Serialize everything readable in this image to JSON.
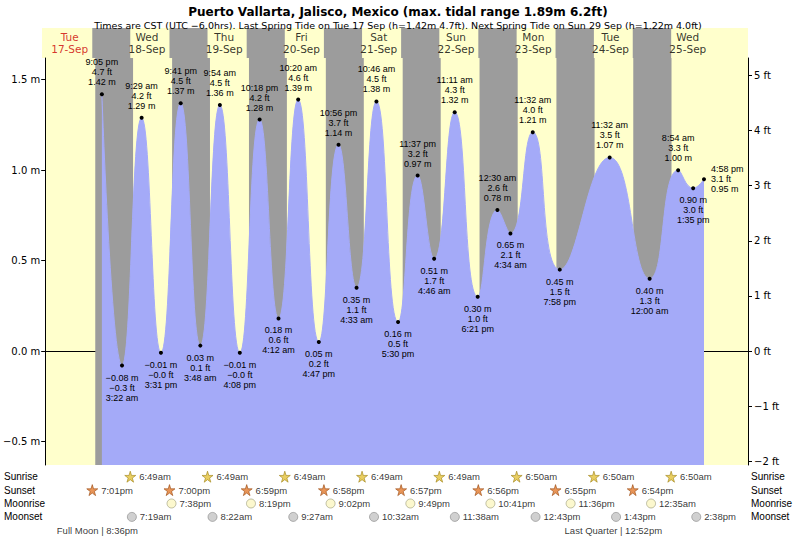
{
  "chart_data": {
    "type": "line",
    "title": "Puerto Vallarta, Jalisco, Mexico (max. tidal range 1.89m 6.2ft)",
    "subtitle": "Times are CST (UTC −6.0hrs). Last Spring Tide on Tue 17 Sep (h=1.42m 4.7ft). Next Spring Tide on Sun 29 Sep (h=1.22m 4.0ft)",
    "color": "#a4aaf8",
    "grid": false,
    "tick_labels": "y",
    "data_labels": true,
    "xlim": [
      3.4,
      222.7
    ],
    "ylim": [
      -0.63,
      1.62
    ],
    "yticks": [
      {
        "value": -0.5,
        "label": "−0.5 m"
      },
      {
        "value": 0,
        "label": "0.0 m"
      },
      {
        "value": 0.5,
        "label": "0.5 m"
      },
      {
        "value": 1,
        "label": "1.0 m"
      },
      {
        "value": 1.5,
        "label": "1.5 m"
      }
    ],
    "y2lim": [
      -2.067,
      5.315
    ],
    "y2ticks": [
      {
        "value": -2,
        "label": "−2 ft"
      },
      {
        "value": -1,
        "label": "−1 ft"
      },
      {
        "value": 0,
        "label": "0 ft"
      },
      {
        "value": 1,
        "label": "1 ft"
      },
      {
        "value": 2,
        "label": "2 ft"
      },
      {
        "value": 3,
        "label": "3 ft"
      },
      {
        "value": 4,
        "label": "4 ft"
      },
      {
        "value": 5,
        "label": "5 ft"
      }
    ],
    "x": [
      21.083,
      27.367,
      33.483,
      39.517,
      45.683,
      51.8,
      57.9,
      64.133,
      70.3,
      76.2,
      82.333,
      88.783,
      94.933,
      100.55,
      106.767,
      113.5,
      119.617,
      124.767,
      131.183,
      138.35,
      144.5,
      148.567,
      155.533,
      163.967,
      179.533,
      192,
      200.9,
      205.583,
      208.967
    ],
    "values": [
      1.42,
      -0.08,
      1.29,
      -0.01,
      1.37,
      0.03,
      1.36,
      -0.01,
      1.28,
      0.18,
      1.39,
      0.05,
      1.14,
      0.35,
      1.38,
      0.16,
      0.97,
      0.51,
      1.32,
      0.3,
      0.78,
      0.65,
      1.21,
      0.45,
      1.07,
      0.4,
      1.0,
      0.9,
      0.95
    ],
    "value_labels": [
      "1.42 m",
      "−0.08 m",
      "1.29 m",
      "−0.01 m",
      "1.37 m",
      "0.03 m",
      "1.36 m",
      "−0.01 m",
      "1.28 m",
      "0.18 m",
      "1.39 m",
      "0.05 m",
      "1.14 m",
      "0.35 m",
      "1.38 m",
      "0.16 m",
      "0.97 m",
      "0.51 m",
      "1.32 m",
      "0.30 m",
      "0.78 m",
      "0.65 m",
      "1.21 m",
      "0.45 m",
      "1.07 m",
      "0.40 m",
      "1.00 m",
      "0.90 m",
      "0.95 m"
    ],
    "ft_labels": [
      "4.7 ft",
      "−0.3 ft",
      "4.2 ft",
      "−0.0 ft",
      "4.5 ft",
      "0.1 ft",
      "4.5 ft",
      "−0.0 ft",
      "4.2 ft",
      "0.6 ft",
      "4.6 ft",
      "0.2 ft",
      "3.7 ft",
      "1.1 ft",
      "4.5 ft",
      "0.5 ft",
      "3.2 ft",
      "1.7 ft",
      "4.3 ft",
      "1.0 ft",
      "2.6 ft",
      "2.1 ft",
      "4.0 ft",
      "1.5 ft",
      "3.5 ft",
      "1.3 ft",
      "3.3 ft",
      "3.0 ft",
      "3.1 ft"
    ],
    "time_labels": [
      "9:05 pm",
      "3:22 am",
      "9:29 am",
      "3:31 pm",
      "9:41 pm",
      "3:48 am",
      "9:54 am",
      "4:08 pm",
      "10:18 pm",
      "4:12 am",
      "10:20 am",
      "4:47 pm",
      "10:56 pm",
      "4:33 am",
      "10:46 am",
      "5:30 pm",
      "11:37 pm",
      "4:46 am",
      "11:11 am",
      "6:21 pm",
      "12:30 am",
      "4:34 am",
      "11:32 am",
      "7:58 pm",
      "11:32 am",
      "12:00 am",
      "8:54 am",
      "1:35 pm",
      "4:58 pm"
    ],
    "days": [
      {
        "x": 12,
        "day": "Tue",
        "date": "17-Sep",
        "color": "#cc0000"
      },
      {
        "x": 36,
        "day": "Wed",
        "date": "18-Sep",
        "color": "#000000"
      },
      {
        "x": 60,
        "day": "Thu",
        "date": "19-Sep",
        "color": "#000000"
      },
      {
        "x": 84,
        "day": "Fri",
        "date": "20-Sep",
        "color": "#000000"
      },
      {
        "x": 108,
        "day": "Sat",
        "date": "21-Sep",
        "color": "#000000"
      },
      {
        "x": 132,
        "day": "Sun",
        "date": "22-Sep",
        "color": "#000000"
      },
      {
        "x": 156,
        "day": "Mon",
        "date": "23-Sep",
        "color": "#000000"
      },
      {
        "x": 180,
        "day": "Tue",
        "date": "24-Sep",
        "color": "#000000"
      },
      {
        "x": 204,
        "day": "Wed",
        "date": "25-Sep",
        "color": "#000000"
      }
    ],
    "almanac": [
      {
        "name": "Sunrise",
        "events": [
          {
            "x": 30.817,
            "label": "6:49am"
          },
          {
            "x": 54.817,
            "label": "6:49am"
          },
          {
            "x": 78.817,
            "label": "6:49am"
          },
          {
            "x": 102.817,
            "label": "6:49am"
          },
          {
            "x": 126.817,
            "label": "6:49am"
          },
          {
            "x": 150.833,
            "label": "6:50am"
          },
          {
            "x": 174.833,
            "label": "6:50am"
          },
          {
            "x": 198.833,
            "label": "6:50am"
          }
        ]
      },
      {
        "name": "Sunset",
        "events": [
          {
            "x": 19.017,
            "label": "7:01pm"
          },
          {
            "x": 43.0,
            "label": "7:00pm"
          },
          {
            "x": 66.983,
            "label": "6:59pm"
          },
          {
            "x": 90.967,
            "label": "6:58pm"
          },
          {
            "x": 114.95,
            "label": "6:57pm"
          },
          {
            "x": 138.933,
            "label": "6:56pm"
          },
          {
            "x": 162.917,
            "label": "6:55pm"
          },
          {
            "x": 186.9,
            "label": "6:54pm"
          }
        ]
      },
      {
        "name": "Moonrise",
        "events": [
          {
            "x": 43.633,
            "label": "7:38pm"
          },
          {
            "x": 68.317,
            "label": "8:19pm"
          },
          {
            "x": 93.033,
            "label": "9:02pm"
          },
          {
            "x": 117.817,
            "label": "9:49pm"
          },
          {
            "x": 142.683,
            "label": "10:41pm"
          },
          {
            "x": 167.6,
            "label": "11:36pm"
          },
          {
            "x": 192.583,
            "label": "12:35am"
          }
        ]
      },
      {
        "name": "Moonset",
        "events": [
          {
            "x": 31.317,
            "label": "7:19am"
          },
          {
            "x": 56.367,
            "label": "8:22am"
          },
          {
            "x": 81.45,
            "label": "9:27am"
          },
          {
            "x": 106.533,
            "label": "10:32am"
          },
          {
            "x": 131.633,
            "label": "11:38am"
          },
          {
            "x": 156.717,
            "label": "12:43pm"
          },
          {
            "x": 181.717,
            "label": "1:43pm"
          },
          {
            "x": 206.633,
            "label": "2:38pm"
          }
        ]
      }
    ],
    "moon_phases": [
      {
        "x": 20.6,
        "label": "Full Moon | 8:36pm"
      },
      {
        "x": 180.867,
        "label": "Last Quarter | 12:52pm"
      }
    ]
  }
}
